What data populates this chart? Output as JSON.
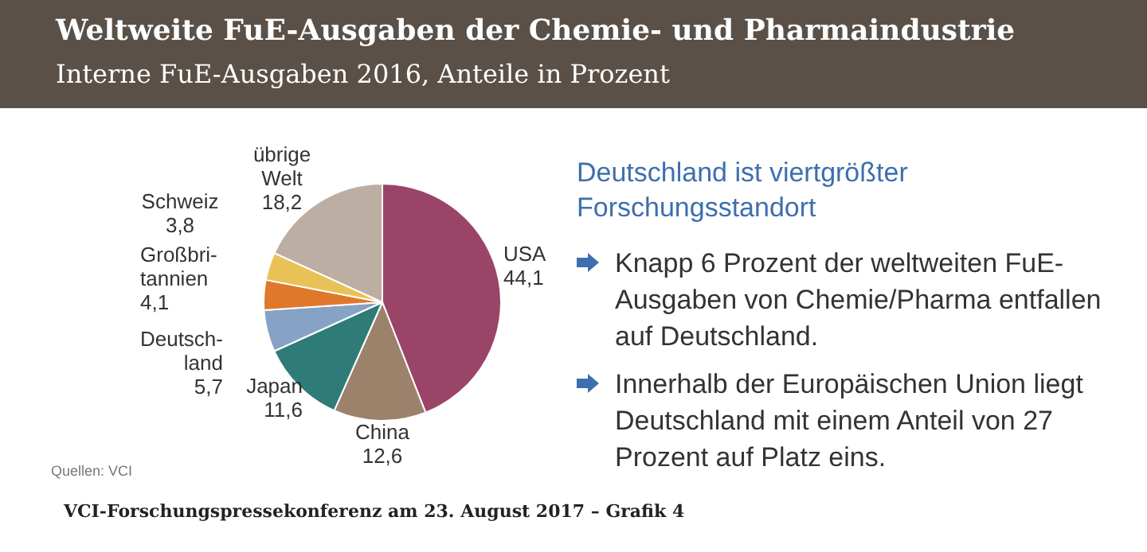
{
  "chart_data": {
    "type": "pie",
    "title": "Weltweite FuE-Ausgaben der Chemie- und Pharmaindustrie",
    "subtitle": "Interne FuE-Ausgaben 2016, Anteile in Prozent",
    "categories": [
      "USA",
      "China",
      "Japan",
      "Deutsch-\nland",
      "Großbri-\ntannien",
      "Schweiz",
      "übrige\nWelt"
    ],
    "values": [
      44.1,
      12.6,
      11.6,
      5.7,
      4.1,
      3.8,
      18.2
    ],
    "value_labels": [
      "44,1",
      "12,6",
      "11,6",
      "5,7",
      "4,1",
      "3,8",
      "18,2"
    ],
    "colors": [
      "#9a4468",
      "#9c826a",
      "#2e7b78",
      "#86a2c4",
      "#e0782c",
      "#e9c257",
      "#bcaea2"
    ],
    "legend": false,
    "annotations": [
      "Deutschland ist viertgrößter Forschungsstandort",
      "Knapp 6 Prozent der weltweiten FuE-Ausgaben von Chemie/Pharma entfallen auf Deutschland.",
      "Innerhalb der Europäischen Union liegt Deutschland mit einem Anteil von 27 Prozent auf Platz eins.",
      "Quellen: VCI",
      "VCI-Forschungspressekonferenz am 23. August 2017 – Grafik 4"
    ]
  }
}
